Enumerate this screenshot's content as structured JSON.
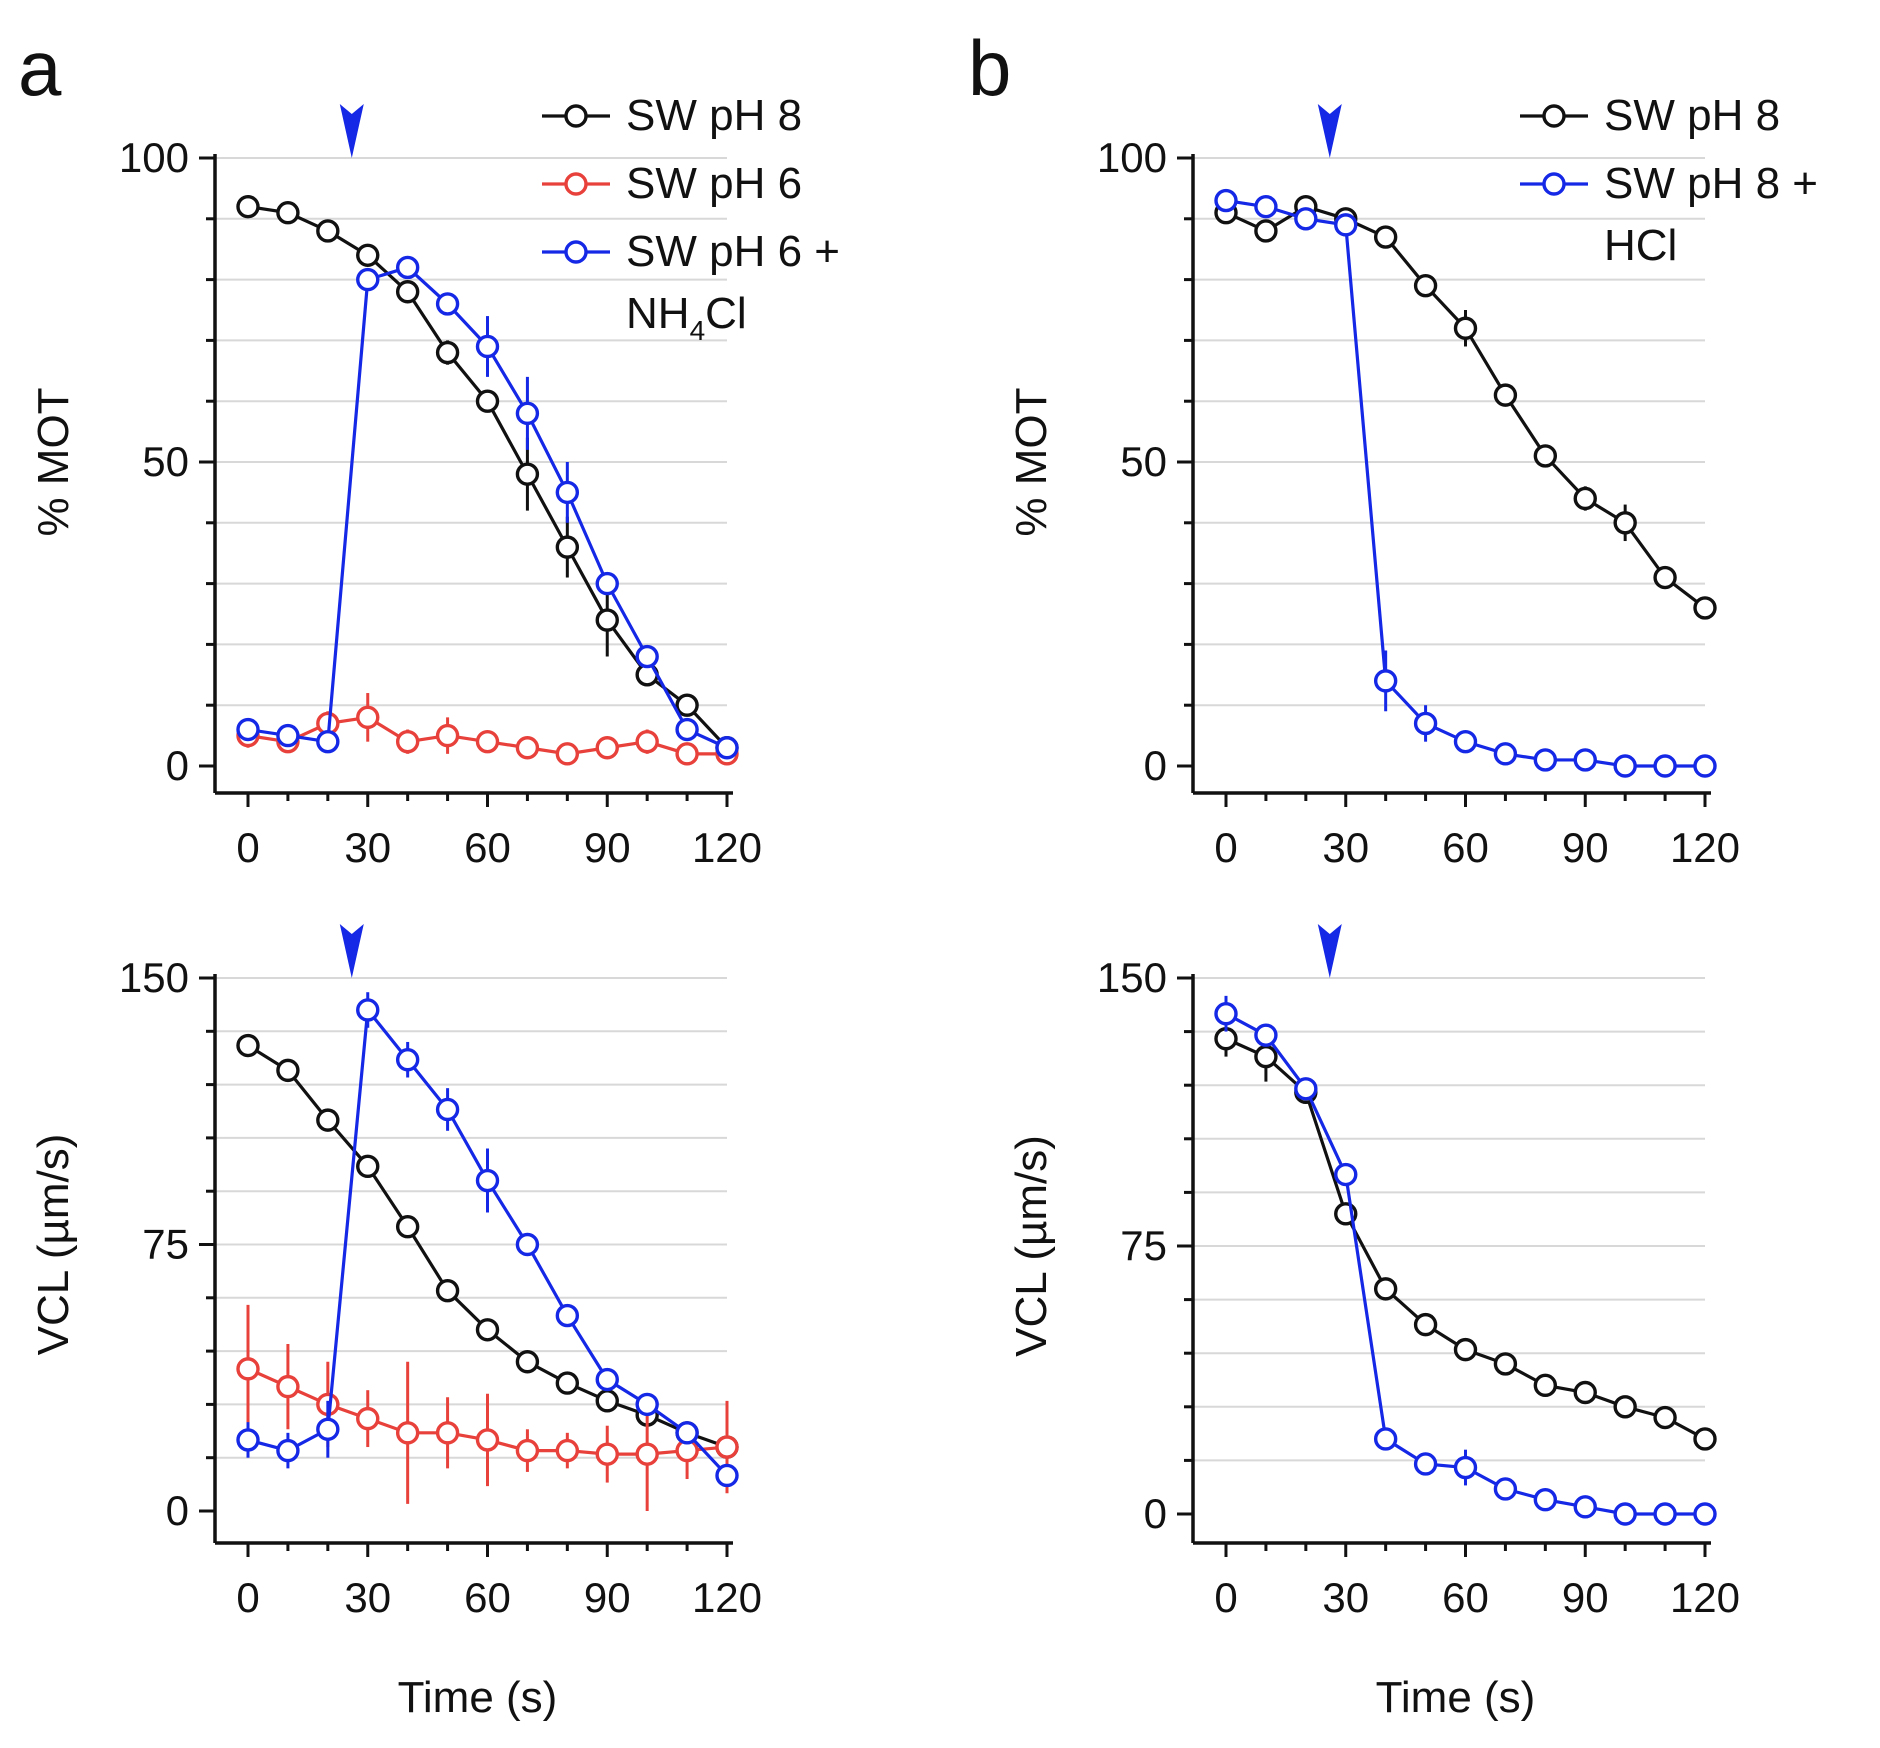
{
  "panels": [
    {
      "letter": "a"
    },
    {
      "letter": "b"
    }
  ],
  "chart_data": [
    {
      "id": "a-top",
      "type": "line",
      "title": "",
      "xlabel": "",
      "ylabel": "% MOT",
      "xlim": [
        0,
        120
      ],
      "ylim": [
        0,
        100
      ],
      "xticks": [
        0,
        30,
        60,
        90,
        120
      ],
      "yticks": [
        0,
        50,
        100
      ],
      "arrow_x": 26,
      "legend": "top-right",
      "series": [
        {
          "name": "SW pH 8",
          "color": "#111111",
          "x": [
            0,
            10,
            20,
            30,
            40,
            50,
            60,
            70,
            80,
            90,
            100,
            110,
            120
          ],
          "y": [
            92,
            91,
            88,
            84,
            78,
            68,
            60,
            48,
            36,
            24,
            15,
            10,
            3
          ],
          "err": [
            0,
            0,
            0,
            0,
            0,
            2,
            0,
            6,
            5,
            6,
            0,
            0,
            0
          ]
        },
        {
          "name": "SW pH 6",
          "color": "#e8403a",
          "x": [
            0,
            10,
            20,
            30,
            40,
            50,
            60,
            70,
            80,
            90,
            100,
            110,
            120
          ],
          "y": [
            5,
            4,
            7,
            8,
            4,
            5,
            4,
            3,
            2,
            3,
            4,
            2,
            2
          ],
          "err": [
            2,
            0,
            2,
            4,
            2,
            3,
            0,
            0,
            0,
            0,
            2,
            0,
            0
          ]
        },
        {
          "name": "SW pH 6 + NH₄Cl",
          "color": "#1428e6",
          "x": [
            0,
            10,
            20,
            30,
            40,
            50,
            60,
            70,
            80,
            90,
            100,
            110,
            120
          ],
          "y": [
            6,
            5,
            4,
            80,
            82,
            76,
            69,
            58,
            45,
            30,
            18,
            6,
            3
          ],
          "err": [
            1,
            0,
            0,
            0,
            0,
            0,
            5,
            6,
            5,
            0,
            0,
            0,
            0
          ]
        }
      ]
    },
    {
      "id": "a-bottom",
      "type": "line",
      "title": "",
      "xlabel": "Time (s)",
      "ylabel": "VCL (µm/s)",
      "xlim": [
        0,
        120
      ],
      "ylim": [
        0,
        150
      ],
      "xticks": [
        0,
        30,
        60,
        90,
        120
      ],
      "yticks": [
        0,
        75,
        150
      ],
      "arrow_x": 26,
      "series": [
        {
          "name": "SW pH 8",
          "color": "#111111",
          "x": [
            0,
            10,
            20,
            30,
            40,
            50,
            60,
            70,
            80,
            90,
            100,
            110,
            120
          ],
          "y": [
            131,
            124,
            110,
            97,
            80,
            62,
            51,
            42,
            36,
            31,
            27,
            22,
            18
          ],
          "err": [
            3,
            3,
            3,
            0,
            0,
            0,
            0,
            0,
            0,
            0,
            0,
            0,
            3
          ]
        },
        {
          "name": "SW pH 6",
          "color": "#e8403a",
          "x": [
            0,
            10,
            20,
            30,
            40,
            50,
            60,
            70,
            80,
            90,
            100,
            110,
            120
          ],
          "y": [
            40,
            35,
            30,
            26,
            22,
            22,
            20,
            17,
            17,
            16,
            16,
            17,
            18
          ],
          "err": [
            18,
            12,
            12,
            8,
            20,
            10,
            13,
            6,
            5,
            8,
            16,
            8,
            13
          ]
        },
        {
          "name": "SW pH 6 + NH₄Cl",
          "color": "#1428e6",
          "x": [
            0,
            10,
            20,
            30,
            40,
            50,
            60,
            70,
            80,
            90,
            100,
            110,
            120
          ],
          "y": [
            20,
            17,
            23,
            141,
            127,
            113,
            93,
            75,
            55,
            37,
            30,
            22,
            10
          ],
          "err": [
            5,
            5,
            8,
            5,
            5,
            6,
            9,
            0,
            0,
            0,
            0,
            0,
            0
          ]
        }
      ]
    },
    {
      "id": "b-top",
      "type": "line",
      "title": "",
      "xlabel": "",
      "ylabel": "% MOT",
      "xlim": [
        0,
        120
      ],
      "ylim": [
        0,
        100
      ],
      "xticks": [
        0,
        30,
        60,
        90,
        120
      ],
      "yticks": [
        0,
        50,
        100
      ],
      "arrow_x": 26,
      "legend": "top-right",
      "series": [
        {
          "name": "SW pH 8",
          "color": "#111111",
          "x": [
            0,
            10,
            20,
            30,
            40,
            50,
            60,
            70,
            80,
            90,
            100,
            110,
            120
          ],
          "y": [
            91,
            88,
            92,
            90,
            87,
            79,
            72,
            61,
            51,
            44,
            40,
            31,
            26
          ],
          "err": [
            0,
            0,
            0,
            0,
            0,
            0,
            3,
            0,
            0,
            2,
            3,
            0,
            0
          ]
        },
        {
          "name": "SW pH 8 + HCl",
          "color": "#1428e6",
          "x": [
            0,
            10,
            20,
            30,
            40,
            50,
            60,
            70,
            80,
            90,
            100,
            110,
            120
          ],
          "y": [
            93,
            92,
            90,
            89,
            14,
            7,
            4,
            2,
            1,
            1,
            0,
            0,
            0
          ],
          "err": [
            0,
            0,
            0,
            0,
            5,
            3,
            0,
            0,
            0,
            0,
            0,
            0,
            0
          ]
        }
      ]
    },
    {
      "id": "b-bottom",
      "type": "line",
      "title": "",
      "xlabel": "Time (s)",
      "ylabel": "VCL (µm/s)",
      "xlim": [
        0,
        120
      ],
      "ylim": [
        0,
        150
      ],
      "xticks": [
        0,
        30,
        60,
        90,
        120
      ],
      "yticks": [
        0,
        75,
        150
      ],
      "arrow_x": 26,
      "series": [
        {
          "name": "SW pH 8",
          "color": "#111111",
          "x": [
            0,
            10,
            20,
            30,
            40,
            50,
            60,
            70,
            80,
            90,
            100,
            110,
            120
          ],
          "y": [
            133,
            128,
            118,
            84,
            63,
            53,
            46,
            42,
            36,
            34,
            30,
            27,
            21
          ],
          "err": [
            5,
            7,
            0,
            0,
            0,
            0,
            0,
            0,
            0,
            0,
            0,
            0,
            0
          ]
        },
        {
          "name": "SW pH 8 + HCl",
          "color": "#1428e6",
          "x": [
            0,
            10,
            20,
            30,
            40,
            50,
            60,
            70,
            80,
            90,
            100,
            110,
            120
          ],
          "y": [
            140,
            134,
            119,
            95,
            21,
            14,
            13,
            7,
            4,
            2,
            0,
            0,
            0
          ],
          "err": [
            5,
            0,
            0,
            0,
            0,
            0,
            5,
            0,
            0,
            0,
            0,
            0,
            0
          ]
        }
      ]
    }
  ],
  "legends": [
    {
      "panel": "a",
      "entries": [
        {
          "text": "SW pH 8",
          "color": "#111111"
        },
        {
          "text": "SW pH 6",
          "color": "#e8403a"
        },
        {
          "text": "SW pH 6 +",
          "text2": "NH",
          "sub": "4",
          "text3": "Cl",
          "color": "#1428e6"
        }
      ]
    },
    {
      "panel": "b",
      "entries": [
        {
          "text": "SW pH 8",
          "color": "#111111"
        },
        {
          "text": "SW pH 8 +",
          "text2": "HCl",
          "color": "#1428e6"
        }
      ]
    }
  ]
}
